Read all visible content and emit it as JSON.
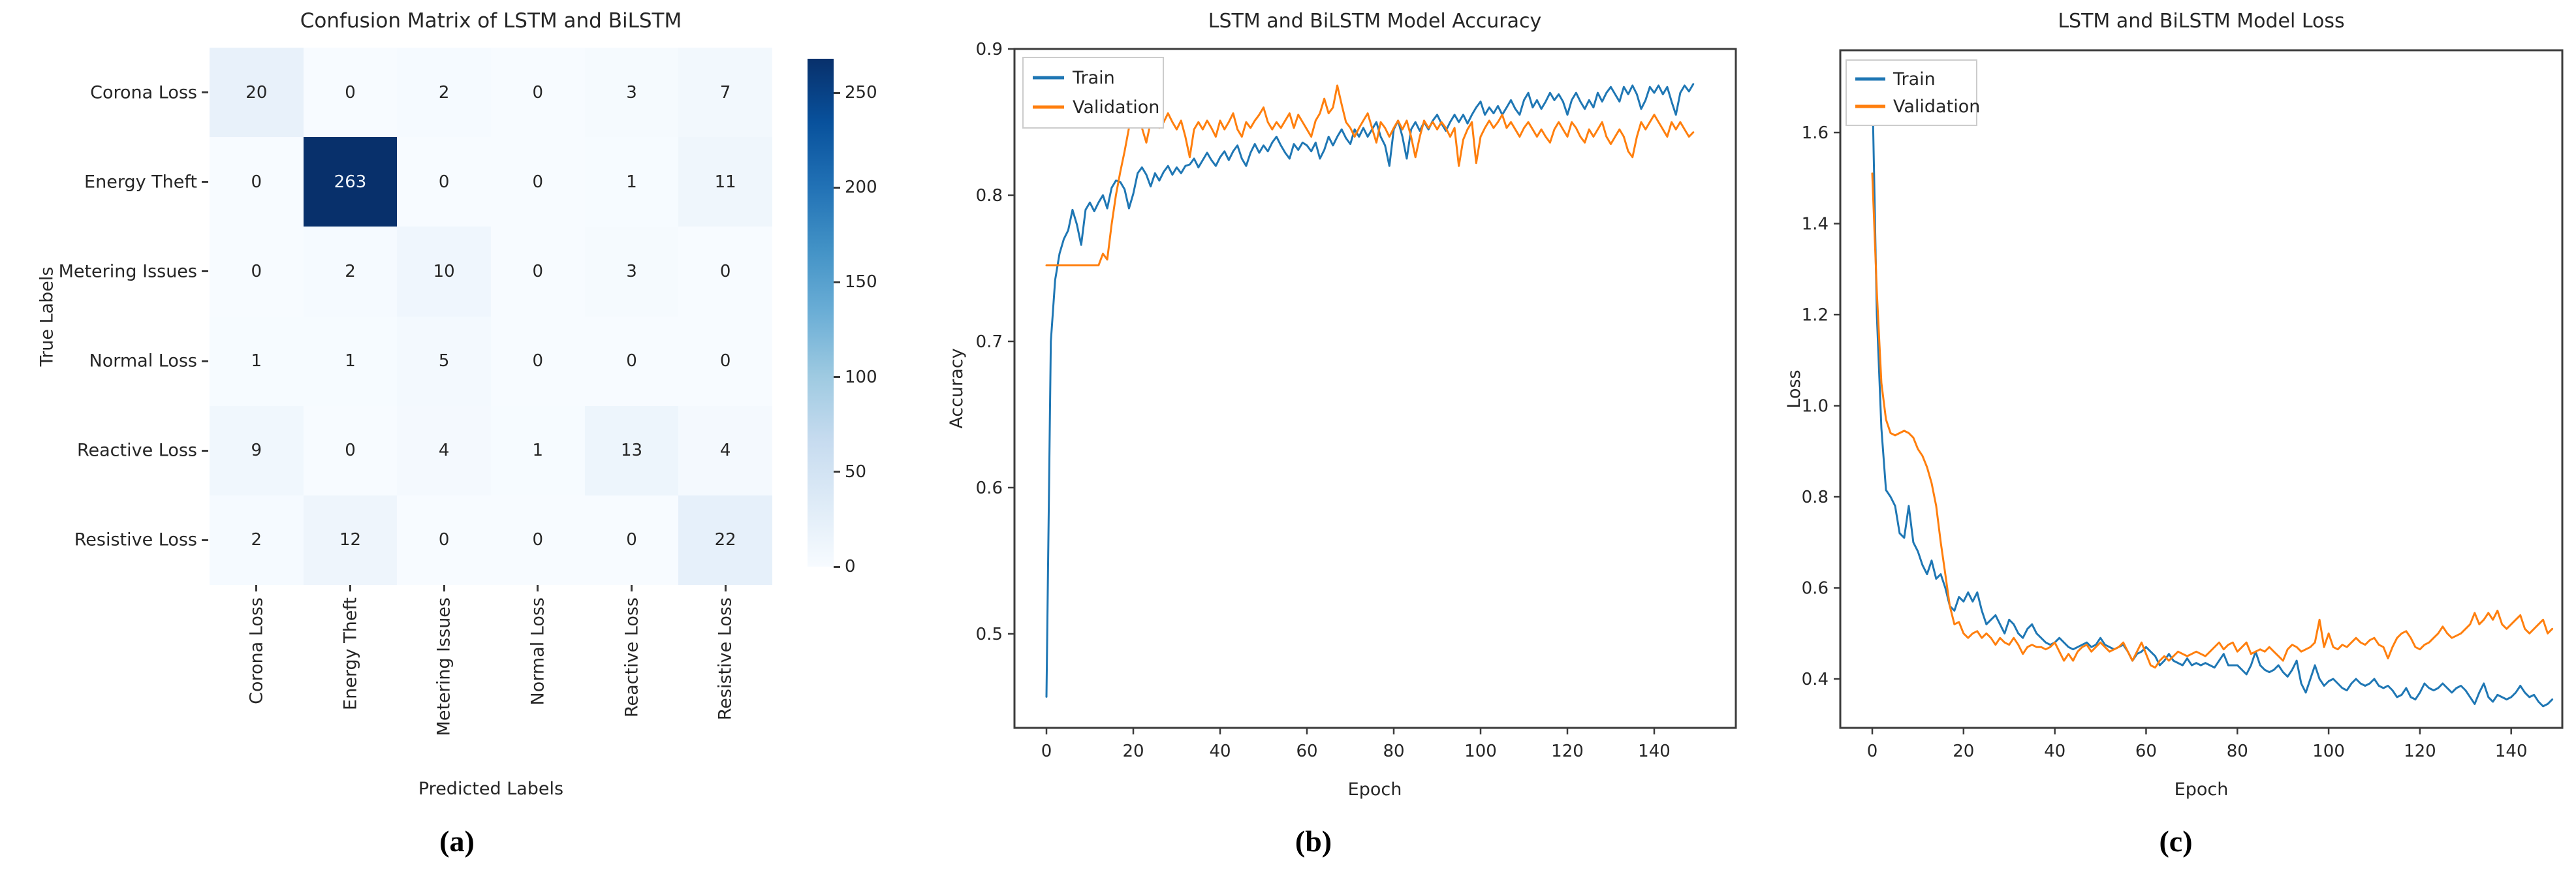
{
  "figure": {
    "captions": {
      "a": "(a)",
      "b": "(b)",
      "c": "(c)"
    }
  },
  "colors": {
    "train": "#1f77b4",
    "validation": "#ff7f0e",
    "heatmap_min": "#f7fbff",
    "heatmap_max": "#08306b",
    "spine": "#3b3b3b"
  },
  "chart_data": [
    {
      "type": "heatmap",
      "title": "Confusion Matrix of LSTM and BiLSTM",
      "xlabel": "Predicted Labels",
      "ylabel": "True Labels",
      "caption": "(a)",
      "colormap": "Blues",
      "x_categories": [
        "Corona Loss",
        "Energy Theft",
        "Metering Issues",
        "Normal Loss",
        "Reactive Loss",
        "Resistive Loss"
      ],
      "y_categories": [
        "Corona Loss",
        "Energy Theft",
        "Metering Issues",
        "Normal Loss",
        "Reactive Loss",
        "Resistive Loss"
      ],
      "matrix": [
        [
          20,
          0,
          2,
          0,
          3,
          7
        ],
        [
          0,
          263,
          0,
          0,
          1,
          11
        ],
        [
          0,
          2,
          10,
          0,
          3,
          0
        ],
        [
          1,
          1,
          5,
          0,
          0,
          0
        ],
        [
          9,
          0,
          4,
          1,
          13,
          4
        ],
        [
          2,
          12,
          0,
          0,
          0,
          22
        ]
      ],
      "vmin": 0,
      "vmax": 263,
      "colorbar_ticks": [
        0,
        50,
        100,
        150,
        200,
        250
      ]
    },
    {
      "type": "line",
      "title": "LSTM and BiLSTM Model Accuracy",
      "xlabel": "Epoch",
      "ylabel": "Accuracy",
      "caption": "(b)",
      "legend_position": "upper left",
      "grid": false,
      "xticks": [
        0,
        20,
        40,
        60,
        80,
        100,
        120,
        140
      ],
      "yticks": [
        0.5,
        0.6,
        0.7,
        0.8,
        0.9
      ],
      "xlim": [
        -7.37,
        158.8
      ],
      "ylim": [
        0.4357,
        0.9
      ],
      "x_start": 0,
      "x_step": 1,
      "series": [
        {
          "name": "Train",
          "color": "#1f77b4",
          "values": [
            0.457,
            0.7,
            0.742,
            0.76,
            0.77,
            0.776,
            0.79,
            0.78,
            0.766,
            0.79,
            0.795,
            0.789,
            0.795,
            0.8,
            0.791,
            0.805,
            0.81,
            0.809,
            0.804,
            0.791,
            0.801,
            0.815,
            0.819,
            0.814,
            0.806,
            0.815,
            0.81,
            0.816,
            0.82,
            0.814,
            0.819,
            0.815,
            0.82,
            0.821,
            0.825,
            0.819,
            0.824,
            0.829,
            0.824,
            0.82,
            0.826,
            0.83,
            0.824,
            0.83,
            0.834,
            0.825,
            0.82,
            0.829,
            0.835,
            0.829,
            0.834,
            0.83,
            0.836,
            0.84,
            0.834,
            0.829,
            0.825,
            0.835,
            0.831,
            0.836,
            0.834,
            0.83,
            0.836,
            0.825,
            0.831,
            0.84,
            0.834,
            0.84,
            0.845,
            0.839,
            0.835,
            0.845,
            0.84,
            0.846,
            0.84,
            0.845,
            0.85,
            0.84,
            0.834,
            0.82,
            0.845,
            0.851,
            0.84,
            0.825,
            0.845,
            0.85,
            0.844,
            0.85,
            0.845,
            0.851,
            0.855,
            0.849,
            0.844,
            0.85,
            0.855,
            0.85,
            0.855,
            0.849,
            0.855,
            0.86,
            0.864,
            0.855,
            0.86,
            0.856,
            0.861,
            0.855,
            0.86,
            0.865,
            0.859,
            0.855,
            0.865,
            0.87,
            0.86,
            0.865,
            0.859,
            0.864,
            0.87,
            0.865,
            0.869,
            0.864,
            0.855,
            0.865,
            0.87,
            0.864,
            0.859,
            0.865,
            0.86,
            0.87,
            0.864,
            0.87,
            0.874,
            0.869,
            0.864,
            0.874,
            0.869,
            0.875,
            0.869,
            0.859,
            0.865,
            0.874,
            0.87,
            0.875,
            0.869,
            0.874,
            0.864,
            0.855,
            0.87,
            0.875,
            0.871,
            0.876
          ]
        },
        {
          "name": "Validation",
          "color": "#ff7f0e",
          "values": [
            0.752,
            0.752,
            0.752,
            0.752,
            0.752,
            0.752,
            0.752,
            0.752,
            0.752,
            0.752,
            0.752,
            0.752,
            0.752,
            0.76,
            0.756,
            0.78,
            0.8,
            0.816,
            0.83,
            0.846,
            0.852,
            0.86,
            0.846,
            0.836,
            0.85,
            0.855,
            0.846,
            0.85,
            0.856,
            0.85,
            0.845,
            0.851,
            0.84,
            0.826,
            0.845,
            0.85,
            0.845,
            0.851,
            0.846,
            0.84,
            0.851,
            0.845,
            0.85,
            0.856,
            0.845,
            0.84,
            0.85,
            0.846,
            0.851,
            0.855,
            0.86,
            0.85,
            0.845,
            0.85,
            0.846,
            0.851,
            0.856,
            0.846,
            0.855,
            0.85,
            0.845,
            0.84,
            0.851,
            0.856,
            0.866,
            0.856,
            0.86,
            0.875,
            0.862,
            0.85,
            0.846,
            0.84,
            0.846,
            0.851,
            0.856,
            0.846,
            0.836,
            0.85,
            0.846,
            0.84,
            0.846,
            0.851,
            0.845,
            0.851,
            0.84,
            0.826,
            0.84,
            0.851,
            0.846,
            0.85,
            0.845,
            0.85,
            0.846,
            0.84,
            0.846,
            0.82,
            0.838,
            0.845,
            0.85,
            0.822,
            0.84,
            0.846,
            0.851,
            0.846,
            0.85,
            0.855,
            0.846,
            0.85,
            0.845,
            0.84,
            0.846,
            0.85,
            0.845,
            0.84,
            0.845,
            0.84,
            0.836,
            0.845,
            0.85,
            0.845,
            0.84,
            0.85,
            0.846,
            0.84,
            0.836,
            0.845,
            0.84,
            0.845,
            0.85,
            0.84,
            0.835,
            0.84,
            0.845,
            0.84,
            0.83,
            0.826,
            0.84,
            0.85,
            0.845,
            0.85,
            0.855,
            0.85,
            0.845,
            0.84,
            0.85,
            0.845,
            0.85,
            0.845,
            0.84,
            0.843
          ]
        }
      ]
    },
    {
      "type": "line",
      "title": "LSTM and BiLSTM Model Loss",
      "xlabel": "Epoch",
      "ylabel": "Loss",
      "caption": "(c)",
      "legend_position": "upper left",
      "grid": false,
      "xticks": [
        0,
        20,
        40,
        60,
        80,
        100,
        120,
        140
      ],
      "yticks": [
        0.4,
        0.6,
        0.8,
        1.0,
        1.2,
        1.4,
        1.6
      ],
      "xlim": [
        -7.01,
        151.2
      ],
      "ylim": [
        0.2925,
        1.7807
      ],
      "x_start": 0,
      "x_step": 1,
      "series": [
        {
          "name": "Train",
          "color": "#1f77b4",
          "values": [
            1.71,
            1.2,
            0.95,
            0.815,
            0.8,
            0.78,
            0.72,
            0.71,
            0.78,
            0.7,
            0.68,
            0.65,
            0.63,
            0.66,
            0.62,
            0.63,
            0.6,
            0.56,
            0.55,
            0.58,
            0.57,
            0.59,
            0.57,
            0.59,
            0.55,
            0.52,
            0.53,
            0.54,
            0.52,
            0.5,
            0.53,
            0.52,
            0.5,
            0.49,
            0.51,
            0.52,
            0.5,
            0.49,
            0.48,
            0.475,
            0.48,
            0.49,
            0.48,
            0.47,
            0.465,
            0.47,
            0.475,
            0.48,
            0.47,
            0.475,
            0.49,
            0.475,
            0.47,
            0.465,
            0.47,
            0.475,
            0.46,
            0.44,
            0.455,
            0.46,
            0.47,
            0.46,
            0.45,
            0.43,
            0.44,
            0.455,
            0.44,
            0.435,
            0.43,
            0.445,
            0.43,
            0.435,
            0.43,
            0.435,
            0.43,
            0.425,
            0.44,
            0.455,
            0.43,
            0.43,
            0.43,
            0.42,
            0.41,
            0.43,
            0.46,
            0.43,
            0.42,
            0.415,
            0.42,
            0.43,
            0.415,
            0.405,
            0.42,
            0.44,
            0.39,
            0.37,
            0.4,
            0.43,
            0.4,
            0.385,
            0.395,
            0.4,
            0.39,
            0.38,
            0.375,
            0.39,
            0.4,
            0.39,
            0.385,
            0.39,
            0.4,
            0.385,
            0.38,
            0.385,
            0.375,
            0.36,
            0.365,
            0.38,
            0.36,
            0.355,
            0.37,
            0.39,
            0.38,
            0.375,
            0.38,
            0.39,
            0.38,
            0.37,
            0.38,
            0.385,
            0.375,
            0.36,
            0.345,
            0.37,
            0.39,
            0.36,
            0.35,
            0.365,
            0.36,
            0.355,
            0.36,
            0.37,
            0.385,
            0.37,
            0.36,
            0.365,
            0.35,
            0.34,
            0.345,
            0.355
          ]
        },
        {
          "name": "Validation",
          "color": "#ff7f0e",
          "values": [
            1.51,
            1.25,
            1.05,
            0.97,
            0.94,
            0.935,
            0.94,
            0.945,
            0.94,
            0.93,
            0.905,
            0.89,
            0.865,
            0.83,
            0.78,
            0.7,
            0.63,
            0.56,
            0.52,
            0.525,
            0.5,
            0.49,
            0.5,
            0.505,
            0.49,
            0.5,
            0.49,
            0.475,
            0.49,
            0.48,
            0.475,
            0.49,
            0.475,
            0.455,
            0.47,
            0.475,
            0.47,
            0.47,
            0.465,
            0.47,
            0.48,
            0.46,
            0.44,
            0.455,
            0.44,
            0.46,
            0.47,
            0.475,
            0.46,
            0.47,
            0.48,
            0.47,
            0.46,
            0.465,
            0.47,
            0.48,
            0.46,
            0.44,
            0.46,
            0.48,
            0.455,
            0.43,
            0.425,
            0.44,
            0.45,
            0.44,
            0.45,
            0.46,
            0.455,
            0.45,
            0.455,
            0.46,
            0.455,
            0.45,
            0.46,
            0.47,
            0.48,
            0.465,
            0.475,
            0.48,
            0.46,
            0.47,
            0.48,
            0.455,
            0.46,
            0.465,
            0.46,
            0.47,
            0.46,
            0.45,
            0.44,
            0.465,
            0.475,
            0.47,
            0.46,
            0.465,
            0.47,
            0.48,
            0.53,
            0.47,
            0.5,
            0.47,
            0.465,
            0.475,
            0.47,
            0.48,
            0.49,
            0.48,
            0.475,
            0.485,
            0.49,
            0.475,
            0.47,
            0.445,
            0.47,
            0.49,
            0.5,
            0.505,
            0.49,
            0.47,
            0.465,
            0.475,
            0.48,
            0.49,
            0.5,
            0.515,
            0.5,
            0.49,
            0.495,
            0.5,
            0.51,
            0.52,
            0.545,
            0.52,
            0.53,
            0.545,
            0.53,
            0.55,
            0.52,
            0.51,
            0.52,
            0.53,
            0.54,
            0.51,
            0.5,
            0.51,
            0.52,
            0.53,
            0.5,
            0.51
          ]
        }
      ]
    }
  ]
}
